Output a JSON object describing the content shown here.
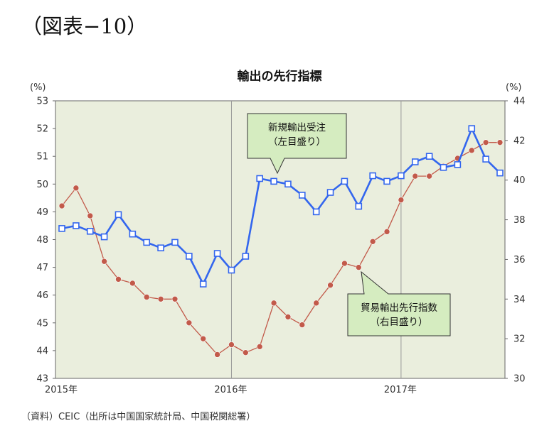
{
  "figure_label": "（図表−10）",
  "source_note": "（資料）CEIC（出所は中国国家統計局、中国税関総署）",
  "chart_data": {
    "type": "line",
    "title": "輸出の先行指標",
    "left_unit": "(%)",
    "right_unit": "(%)",
    "ylim_left": [
      43,
      53
    ],
    "ylim_right": [
      30,
      44
    ],
    "left_ticks": [
      43,
      44,
      45,
      46,
      47,
      48,
      49,
      50,
      51,
      52,
      53
    ],
    "right_ticks": [
      30,
      32,
      34,
      36,
      38,
      40,
      42,
      44
    ],
    "x_tick_labels": [
      {
        "label": "2015年",
        "index": 0
      },
      {
        "label": "2016年",
        "index": 12
      },
      {
        "label": "2017年",
        "index": 24
      }
    ],
    "year_dividers": [
      12,
      24
    ],
    "grid": false,
    "background_color": "#eaeedd",
    "series": [
      {
        "name": "新規輸出受注",
        "annotation": [
          "新規輸出受注",
          "（左目盛り）"
        ],
        "axis": "left",
        "color": "#3366ee",
        "marker": "square",
        "values": [
          48.4,
          48.5,
          48.3,
          48.1,
          48.9,
          48.2,
          47.9,
          47.7,
          47.9,
          47.4,
          46.4,
          47.5,
          46.9,
          47.4,
          50.2,
          50.1,
          50.0,
          49.6,
          49.0,
          49.7,
          50.1,
          49.2,
          50.3,
          50.1,
          50.3,
          50.8,
          51.0,
          50.6,
          50.7,
          52.0,
          50.9,
          50.4
        ]
      },
      {
        "name": "貿易輸出先行指数",
        "annotation": [
          "貿易輸出先行指数",
          "（右目盛り）"
        ],
        "axis": "right",
        "color": "#c25a4a",
        "marker": "circle",
        "values": [
          38.7,
          39.6,
          38.2,
          35.9,
          35.0,
          34.8,
          34.1,
          34.0,
          34.0,
          32.8,
          32.0,
          31.2,
          31.7,
          31.3,
          31.6,
          33.8,
          33.1,
          32.7,
          33.8,
          34.7,
          35.8,
          35.6,
          36.9,
          37.4,
          39.0,
          40.2,
          40.2,
          40.7,
          41.1,
          41.5,
          41.9,
          41.9
        ]
      }
    ]
  }
}
